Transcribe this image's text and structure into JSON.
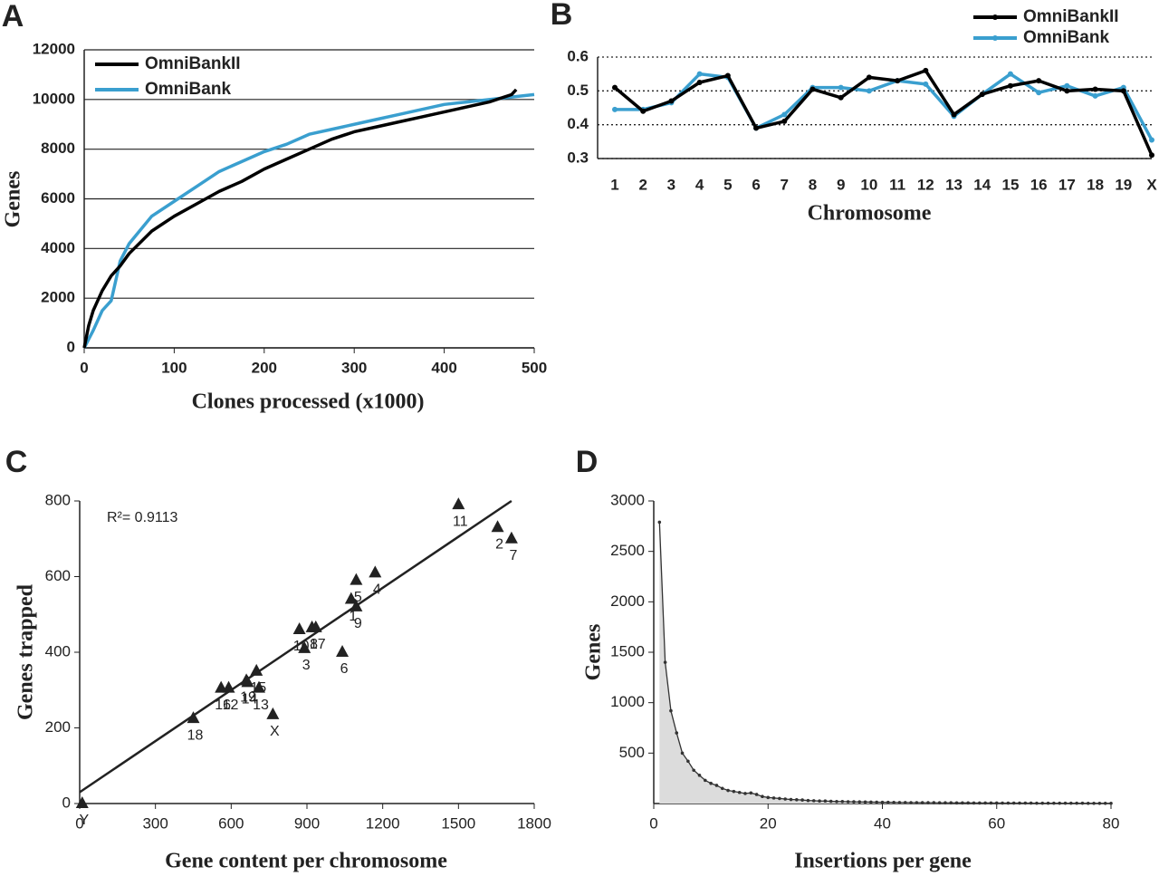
{
  "chart_data": [
    {
      "type": "line",
      "panel": "A",
      "xlabel": "Clones processed (x1000)",
      "ylabel": "Genes",
      "xlim": [
        0,
        500
      ],
      "xticks": [
        0,
        100,
        200,
        300,
        400,
        500
      ],
      "ylim": [
        0,
        12000
      ],
      "yticks": [
        0,
        2000,
        4000,
        6000,
        8000,
        10000,
        12000
      ],
      "grid": true,
      "legend": "upper left",
      "series": [
        {
          "name": "OmniBankII",
          "color": "#000000",
          "x": [
            0,
            5,
            10,
            20,
            30,
            40,
            50,
            75,
            100,
            125,
            150,
            175,
            200,
            225,
            250,
            275,
            300,
            325,
            350,
            375,
            400,
            425,
            450,
            475,
            480
          ],
          "values": [
            0,
            900,
            1500,
            2300,
            2900,
            3300,
            3800,
            4700,
            5300,
            5800,
            6300,
            6700,
            7200,
            7600,
            8000,
            8400,
            8700,
            8900,
            9100,
            9300,
            9500,
            9700,
            9900,
            10200,
            10400
          ]
        },
        {
          "name": "OmniBank",
          "color": "#3a9fcf",
          "x": [
            0,
            10,
            20,
            30,
            40,
            50,
            75,
            100,
            125,
            150,
            175,
            200,
            225,
            250,
            275,
            300,
            325,
            350,
            375,
            400,
            425,
            450,
            475,
            500
          ],
          "values": [
            0,
            700,
            1500,
            1900,
            3500,
            4200,
            5300,
            5900,
            6500,
            7100,
            7500,
            7900,
            8200,
            8600,
            8800,
            9000,
            9200,
            9400,
            9600,
            9800,
            9900,
            10000,
            10100,
            10200
          ]
        }
      ]
    },
    {
      "type": "line",
      "panel": "B",
      "xlabel": "Chromosome",
      "categories": [
        "1",
        "2",
        "3",
        "4",
        "5",
        "6",
        "7",
        "8",
        "9",
        "10",
        "11",
        "12",
        "13",
        "14",
        "15",
        "16",
        "17",
        "18",
        "19",
        "X"
      ],
      "ylim": [
        0.3,
        0.6
      ],
      "yticks": [
        0.3,
        0.4,
        0.5,
        0.6
      ],
      "grid": "dotted",
      "legend": "upper right",
      "markers": true,
      "series": [
        {
          "name": "OmniBankII",
          "color": "#000000",
          "values": [
            0.51,
            0.44,
            0.47,
            0.525,
            0.545,
            0.39,
            0.41,
            0.505,
            0.48,
            0.54,
            0.53,
            0.56,
            0.43,
            0.49,
            0.515,
            0.53,
            0.5,
            0.505,
            0.5,
            0.31
          ]
        },
        {
          "name": "OmniBank",
          "color": "#3a9fcf",
          "values": [
            0.445,
            0.445,
            0.465,
            0.55,
            0.54,
            0.39,
            0.43,
            0.51,
            0.51,
            0.5,
            0.53,
            0.52,
            0.425,
            0.49,
            0.55,
            0.495,
            0.515,
            0.485,
            0.51,
            0.355
          ]
        }
      ]
    },
    {
      "type": "scatter",
      "panel": "C",
      "xlabel": "Gene content per chromosome",
      "ylabel": "Genes trapped",
      "annotation": "R²= 0.9113",
      "xlim": [
        0,
        1800
      ],
      "xticks": [
        0,
        300,
        600,
        900,
        1200,
        1500,
        1800
      ],
      "ylim": [
        0,
        800
      ],
      "yticks": [
        0,
        200,
        400,
        600,
        800
      ],
      "color": "#222222",
      "point_labels": [
        "11",
        "2",
        "7",
        "4",
        "5",
        "1",
        "9",
        "8",
        "17",
        "10",
        "3",
        "6",
        "15",
        "19",
        "16",
        "12",
        "14",
        "13",
        "18",
        "X",
        "Y"
      ],
      "x": [
        1500,
        1655,
        1710,
        1170,
        1095,
        1075,
        1095,
        920,
        935,
        870,
        890,
        1040,
        700,
        660,
        560,
        590,
        665,
        710,
        450,
        765,
        10
      ],
      "values": [
        790,
        730,
        700,
        610,
        590,
        540,
        520,
        465,
        465,
        460,
        410,
        400,
        350,
        325,
        305,
        305,
        320,
        305,
        225,
        235,
        0
      ],
      "trendline": {
        "x": [
          0,
          1710
        ],
        "values": [
          30,
          800
        ]
      }
    },
    {
      "type": "area",
      "panel": "D",
      "xlabel": "Insertions per gene",
      "ylabel": "Genes",
      "xlim": [
        0,
        80
      ],
      "xticks": [
        0,
        20,
        40,
        60,
        80
      ],
      "ylim": [
        0,
        3000
      ],
      "yticks": [
        500,
        1000,
        1500,
        2000,
        2500,
        3000
      ],
      "color": "#333333",
      "fill": "#dcdcdc",
      "x": [
        1,
        2,
        3,
        4,
        5,
        6,
        7,
        8,
        9,
        10,
        11,
        12,
        13,
        14,
        15,
        16,
        17,
        18,
        19,
        20,
        21,
        22,
        23,
        24,
        25,
        26,
        27,
        28,
        29,
        30,
        31,
        32,
        33,
        34,
        35,
        36,
        37,
        38,
        39,
        40,
        41,
        42,
        43,
        44,
        45,
        46,
        47,
        48,
        49,
        50,
        51,
        52,
        53,
        54,
        55,
        56,
        57,
        58,
        59,
        60,
        61,
        62,
        63,
        64,
        65,
        66,
        67,
        68,
        69,
        70,
        71,
        72,
        73,
        74,
        75,
        76,
        77,
        78,
        79,
        80
      ],
      "values": [
        2790,
        1400,
        920,
        700,
        500,
        420,
        330,
        280,
        230,
        200,
        180,
        150,
        130,
        120,
        110,
        100,
        105,
        90,
        70,
        60,
        55,
        50,
        45,
        40,
        38,
        35,
        30,
        28,
        25,
        25,
        22,
        20,
        20,
        18,
        17,
        16,
        15,
        14,
        13,
        12,
        12,
        11,
        10,
        10,
        9,
        9,
        8,
        8,
        8,
        7,
        7,
        7,
        6,
        6,
        6,
        5,
        5,
        5,
        5,
        5,
        4,
        4,
        4,
        4,
        4,
        4,
        3,
        3,
        3,
        3,
        3,
        3,
        3,
        3,
        3,
        2,
        2,
        2,
        2,
        2
      ]
    }
  ]
}
